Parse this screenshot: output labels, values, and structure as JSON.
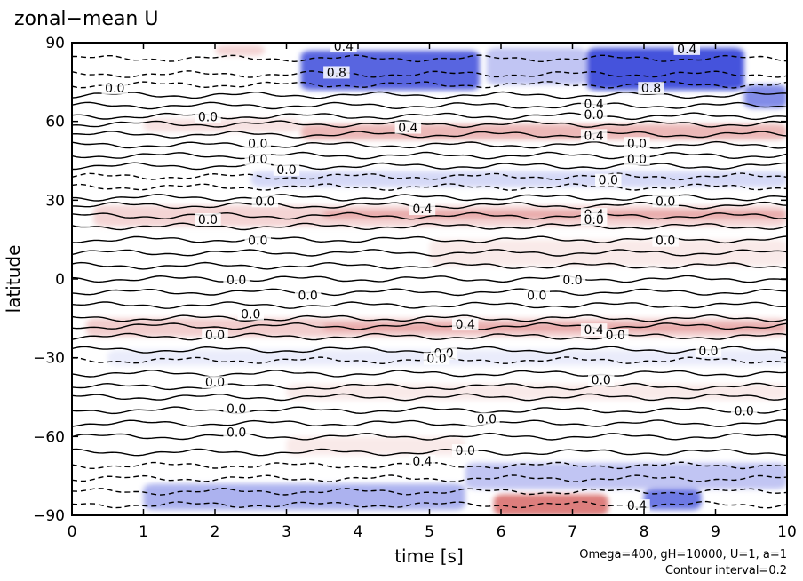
{
  "chart_data": {
    "type": "heatmap",
    "title": "zonal−mean U",
    "xlabel": "time [s]",
    "ylabel": "latitude",
    "xlim": [
      0,
      10
    ],
    "ylim": [
      -90,
      90
    ],
    "xticks": [
      0,
      1,
      2,
      3,
      4,
      5,
      6,
      7,
      8,
      9,
      10
    ],
    "yticks": [
      -90,
      -60,
      -30,
      0,
      30,
      60,
      90
    ],
    "ytick_labels": [
      "−90",
      "−60",
      "−30",
      "0",
      "30",
      "60",
      "90"
    ],
    "contour_interval": 0.2,
    "notes": [
      "Omega=400, gH=10000, U=1, a=1",
      "Contour interval=0.2"
    ],
    "colors": {
      "positive": "#d9706f",
      "negative": "#2f3fd8"
    },
    "bands": [
      {
        "lat_from": 85,
        "lat_to": 89,
        "t_from": 2.0,
        "t_to": 2.7,
        "value": 0.3
      },
      {
        "lat_from": 72,
        "lat_to": 87,
        "t_from": 3.2,
        "t_to": 5.7,
        "value": -0.8
      },
      {
        "lat_from": 72,
        "lat_to": 88,
        "t_from": 7.2,
        "t_to": 9.4,
        "value": -0.9
      },
      {
        "lat_from": 65,
        "lat_to": 74,
        "t_from": 9.4,
        "t_to": 10.0,
        "value": -0.6
      },
      {
        "lat_from": 74,
        "lat_to": 88,
        "t_from": 5.8,
        "t_to": 7.2,
        "value": -0.3
      },
      {
        "lat_from": 53,
        "lat_to": 59,
        "t_from": 3.2,
        "t_to": 10.0,
        "value": 0.5
      },
      {
        "lat_from": 56,
        "lat_to": 61,
        "t_from": 1.0,
        "t_to": 3.2,
        "value": 0.2
      },
      {
        "lat_from": 35,
        "lat_to": 41,
        "t_from": 2.5,
        "t_to": 10.0,
        "value": -0.2
      },
      {
        "lat_from": 20,
        "lat_to": 28,
        "t_from": 0.3,
        "t_to": 10.0,
        "value": 0.3
      },
      {
        "lat_from": 23,
        "lat_to": 26,
        "t_from": 3.5,
        "t_to": 10.0,
        "value": 0.6
      },
      {
        "lat_from": 5,
        "lat_to": 15,
        "t_from": 5.0,
        "t_to": 10.0,
        "value": 0.15
      },
      {
        "lat_from": -22,
        "lat_to": -15,
        "t_from": 0.2,
        "t_to": 10.0,
        "value": 0.35
      },
      {
        "lat_from": -20,
        "lat_to": -17,
        "t_from": 3.5,
        "t_to": 10.0,
        "value": 0.6
      },
      {
        "lat_from": -33,
        "lat_to": -27,
        "t_from": 0.5,
        "t_to": 10.0,
        "value": -0.1
      },
      {
        "lat_from": -46,
        "lat_to": -40,
        "t_from": 3.0,
        "t_to": 10.0,
        "value": 0.15
      },
      {
        "lat_from": -67,
        "lat_to": -60,
        "t_from": 3.0,
        "t_to": 5.5,
        "value": 0.15
      },
      {
        "lat_from": -80,
        "lat_to": -70,
        "t_from": 5.5,
        "t_to": 10.0,
        "value": -0.3
      },
      {
        "lat_from": -88,
        "lat_to": -78,
        "t_from": 1.0,
        "t_to": 5.5,
        "value": -0.4
      },
      {
        "lat_from": -90,
        "lat_to": -82,
        "t_from": 5.9,
        "t_to": 7.5,
        "value": 0.9
      },
      {
        "lat_from": -88,
        "lat_to": -80,
        "t_from": 8.0,
        "t_to": 8.8,
        "value": -0.7
      }
    ],
    "contour_lines": [
      {
        "lat": 84,
        "dashed": true
      },
      {
        "lat": 78,
        "dashed": true
      },
      {
        "lat": 74,
        "dashed": true
      },
      {
        "lat": 70,
        "dashed": false
      },
      {
        "lat": 66,
        "dashed": false
      },
      {
        "lat": 62,
        "dashed": false
      },
      {
        "lat": 59,
        "dashed": false
      },
      {
        "lat": 55,
        "dashed": false
      },
      {
        "lat": 51,
        "dashed": false
      },
      {
        "lat": 47,
        "dashed": false
      },
      {
        "lat": 43,
        "dashed": false
      },
      {
        "lat": 39,
        "dashed": true
      },
      {
        "lat": 35,
        "dashed": true
      },
      {
        "lat": 31,
        "dashed": false
      },
      {
        "lat": 28,
        "dashed": false
      },
      {
        "lat": 24,
        "dashed": false
      },
      {
        "lat": 20,
        "dashed": false
      },
      {
        "lat": 15,
        "dashed": false
      },
      {
        "lat": 10,
        "dashed": false
      },
      {
        "lat": 5,
        "dashed": false
      },
      {
        "lat": 0,
        "dashed": false
      },
      {
        "lat": -5,
        "dashed": false
      },
      {
        "lat": -10,
        "dashed": false
      },
      {
        "lat": -15,
        "dashed": false
      },
      {
        "lat": -18,
        "dashed": false
      },
      {
        "lat": -22,
        "dashed": false
      },
      {
        "lat": -27,
        "dashed": false
      },
      {
        "lat": -31,
        "dashed": true
      },
      {
        "lat": -36,
        "dashed": false
      },
      {
        "lat": -41,
        "dashed": false
      },
      {
        "lat": -45,
        "dashed": false
      },
      {
        "lat": -50,
        "dashed": false
      },
      {
        "lat": -55,
        "dashed": false
      },
      {
        "lat": -60,
        "dashed": false
      },
      {
        "lat": -66,
        "dashed": false
      },
      {
        "lat": -71,
        "dashed": true
      },
      {
        "lat": -76,
        "dashed": true
      },
      {
        "lat": -81,
        "dashed": true
      },
      {
        "lat": -86,
        "dashed": true
      }
    ],
    "contour_labels": [
      {
        "text": "0.4",
        "t": 3.8,
        "lat": 88
      },
      {
        "text": "0.8",
        "t": 3.7,
        "lat": 78
      },
      {
        "text": "0.0",
        "t": 0.6,
        "lat": 72
      },
      {
        "text": "0.4",
        "t": 8.6,
        "lat": 87
      },
      {
        "text": "0.8",
        "t": 8.1,
        "lat": 72
      },
      {
        "text": "0.4",
        "t": 7.3,
        "lat": 66
      },
      {
        "text": "0.0",
        "t": 7.3,
        "lat": 62
      },
      {
        "text": "0.0",
        "t": 1.9,
        "lat": 61
      },
      {
        "text": "0.4",
        "t": 4.7,
        "lat": 57
      },
      {
        "text": "0.4",
        "t": 7.3,
        "lat": 54
      },
      {
        "text": "0.0",
        "t": 2.6,
        "lat": 51
      },
      {
        "text": "0.0",
        "t": 2.6,
        "lat": 45
      },
      {
        "text": "0.0",
        "t": 3.0,
        "lat": 41
      },
      {
        "text": "0.0",
        "t": 7.9,
        "lat": 51
      },
      {
        "text": "0.0",
        "t": 7.9,
        "lat": 45
      },
      {
        "text": "0.0",
        "t": 7.5,
        "lat": 37
      },
      {
        "text": "0.0",
        "t": 2.7,
        "lat": 29
      },
      {
        "text": "0.4",
        "t": 4.9,
        "lat": 26
      },
      {
        "text": "0.0",
        "t": 8.3,
        "lat": 29
      },
      {
        "text": "0.4",
        "t": 7.3,
        "lat": 24
      },
      {
        "text": "0.0",
        "t": 7.3,
        "lat": 22
      },
      {
        "text": "0.0",
        "t": 1.9,
        "lat": 22
      },
      {
        "text": "0.0",
        "t": 2.6,
        "lat": 14
      },
      {
        "text": "0.0",
        "t": 8.3,
        "lat": 14
      },
      {
        "text": "0.0",
        "t": 2.3,
        "lat": -1
      },
      {
        "text": "0.0",
        "t": 3.3,
        "lat": -7
      },
      {
        "text": "0.0",
        "t": 6.5,
        "lat": -7
      },
      {
        "text": "0.0",
        "t": 7.0,
        "lat": -1
      },
      {
        "text": "0.0",
        "t": 2.5,
        "lat": -14
      },
      {
        "text": "0.0",
        "t": 2.0,
        "lat": -22
      },
      {
        "text": "0.4",
        "t": 5.5,
        "lat": -18
      },
      {
        "text": "0.4",
        "t": 7.3,
        "lat": -20
      },
      {
        "text": "0.0",
        "t": 7.6,
        "lat": -22
      },
      {
        "text": "0.0",
        "t": 5.2,
        "lat": -29
      },
      {
        "text": "0.0",
        "t": 5.1,
        "lat": -31
      },
      {
        "text": "0.0",
        "t": 8.9,
        "lat": -28
      },
      {
        "text": "0.0",
        "t": 2.0,
        "lat": -40
      },
      {
        "text": "0.0",
        "t": 7.4,
        "lat": -39
      },
      {
        "text": "0.0",
        "t": 2.3,
        "lat": -50
      },
      {
        "text": "0.0",
        "t": 5.8,
        "lat": -54
      },
      {
        "text": "0.0",
        "t": 9.4,
        "lat": -51
      },
      {
        "text": "0.0",
        "t": 2.3,
        "lat": -59
      },
      {
        "text": "0.0",
        "t": 5.5,
        "lat": -66
      },
      {
        "text": "0.4",
        "t": 4.9,
        "lat": -70
      },
      {
        "text": "0.4",
        "t": 7.9,
        "lat": -87
      }
    ]
  }
}
